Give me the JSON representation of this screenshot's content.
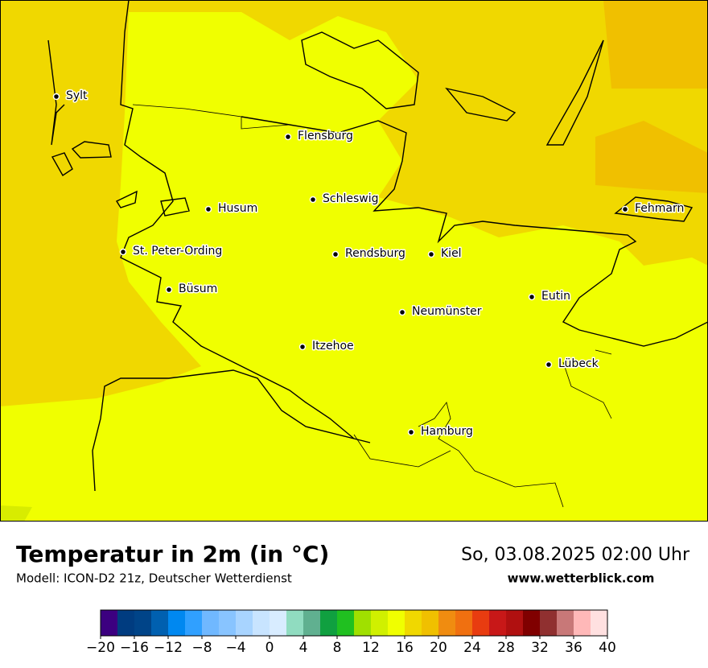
{
  "title": "Temperatur in 2m (in °C)",
  "subtitle": "Modell: ICON-D2 21z, Deutscher Wetterdienst",
  "datetime": "So, 03.08.2025 02:00 Uhr",
  "website": "www.wetterblick.com",
  "map": {
    "cities": [
      "Sylt",
      "Flensburg",
      "Schleswig",
      "Husum",
      "St. Peter-Ording",
      "Rendsburg",
      "Kiel",
      "Fehmarn",
      "Büsum",
      "Neumünster",
      "Eutin",
      "Itzehoe",
      "Lübeck",
      "Hamburg"
    ]
  },
  "colorbar": {
    "lim": [
      -20,
      40
    ],
    "ticks": [
      {
        "value": -20,
        "label": "−20"
      },
      {
        "value": -16,
        "label": "−16"
      },
      {
        "value": -12,
        "label": "−12"
      },
      {
        "value": -8,
        "label": "−8"
      },
      {
        "value": -4,
        "label": "−4"
      },
      0,
      4,
      8,
      12,
      16,
      20,
      24,
      28,
      32,
      36,
      40
    ],
    "colors": [
      "#3c0080",
      "#003c80",
      "#004488",
      "#0060b0",
      "#0088f0",
      "#30a0ff",
      "#70b8ff",
      "#88c4ff",
      "#a8d4ff",
      "#c8e4ff",
      "#d8ecff",
      "#90dcc0",
      "#60b090",
      "#10a040",
      "#20c020",
      "#a0e000",
      "#d0f000",
      "#f0ff00",
      "#f0d800",
      "#f0c000",
      "#f08c10",
      "#f07010",
      "#e83c10",
      "#c81818",
      "#b01010",
      "#800000",
      "#903030",
      "#c87878",
      "#ffb8b8",
      "#ffe0e0"
    ]
  }
}
